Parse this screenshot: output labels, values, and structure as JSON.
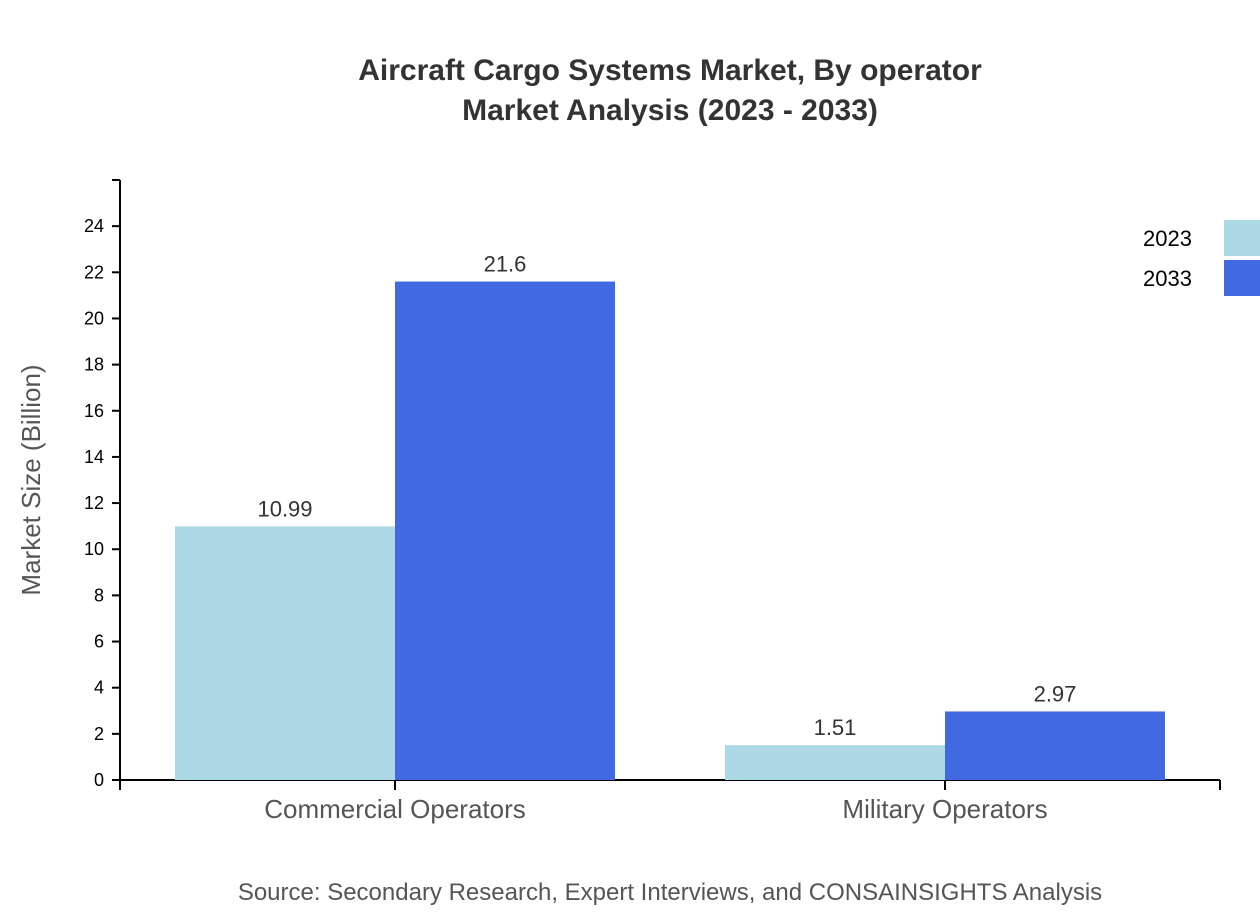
{
  "chart_data": {
    "type": "bar",
    "title": "Aircraft Cargo Systems Market, By operator",
    "subtitle": "Market Analysis (2023 - 2033)",
    "xlabel": "",
    "ylabel": "Market Size (Billion)",
    "ylim": [
      0,
      26
    ],
    "yticks": [
      0,
      2,
      4,
      6,
      8,
      10,
      12,
      14,
      16,
      18,
      20,
      22,
      24
    ],
    "categories": [
      "Commercial Operators",
      "Military Operators"
    ],
    "series": [
      {
        "name": "2023",
        "color": "#add8e6",
        "values": [
          10.99,
          1.51
        ]
      },
      {
        "name": "2033",
        "color": "#4169e1",
        "values": [
          21.6,
          2.97
        ]
      }
    ],
    "grid": false,
    "legend_position": "top-right",
    "source": "Source: Secondary Research, Expert Interviews, and CONSAINSIGHTS Analysis"
  }
}
